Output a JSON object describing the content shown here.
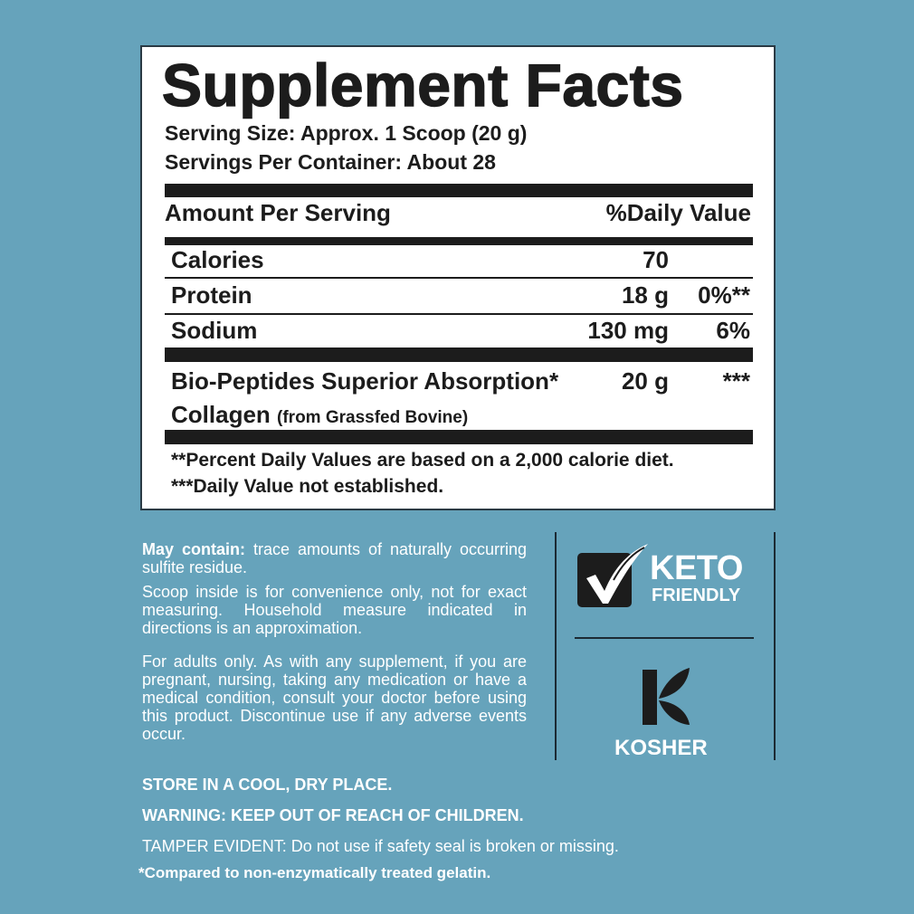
{
  "facts": {
    "title": "Supplement Facts",
    "serving_size": "Serving Size: Approx. 1 Scoop (20 g)",
    "servings_per_container": "Servings Per Container: About 28",
    "header_amount": "Amount Per Serving",
    "header_dv": "%Daily Value",
    "rows": [
      {
        "name": "Calories",
        "amount": "70",
        "dv": ""
      },
      {
        "name": "Protein",
        "amount": "18 g",
        "dv": "0%**"
      },
      {
        "name": "Sodium",
        "amount": "130 mg",
        "dv": "6%"
      }
    ],
    "collagen": {
      "line1": "Bio-Peptides Superior Absorption*",
      "line2": "Collagen",
      "note": "(from Grassfed Bovine)",
      "amount": "20 g",
      "dv": "***"
    },
    "footnote1": "**Percent Daily Values are based on a 2,000 calorie diet.",
    "footnote2": "***Daily Value not established."
  },
  "notes": {
    "may_contain_label": "May contain:",
    "may_contain_text": " trace amounts of naturally occurring sulfite residue.",
    "scoop": "Scoop inside is for convenience only, not for exact measuring. Household measure indicated in directions is an approximation.",
    "adults": "For adults only. As with any supplement, if you are pregnant, nursing, taking any medication or have a medical condition, consult your doctor before using this product. Discontinue use if any adverse events occur."
  },
  "badges": {
    "keto_line1": "KETO",
    "keto_line2": "FRIENDLY",
    "kosher": "KOSHER"
  },
  "bottom": {
    "store": "STORE IN A COOL, DRY PLACE.",
    "warning": "WARNING: KEEP OUT OF REACH OF CHILDREN.",
    "tamper": "TAMPER EVIDENT: Do not use if safety seal is broken or missing.",
    "compared": "*Compared to non-enzymatically treated gelatin."
  },
  "colors": {
    "background": "#66a3bb",
    "ink": "#1c1c1c",
    "panel": "#ffffff"
  }
}
